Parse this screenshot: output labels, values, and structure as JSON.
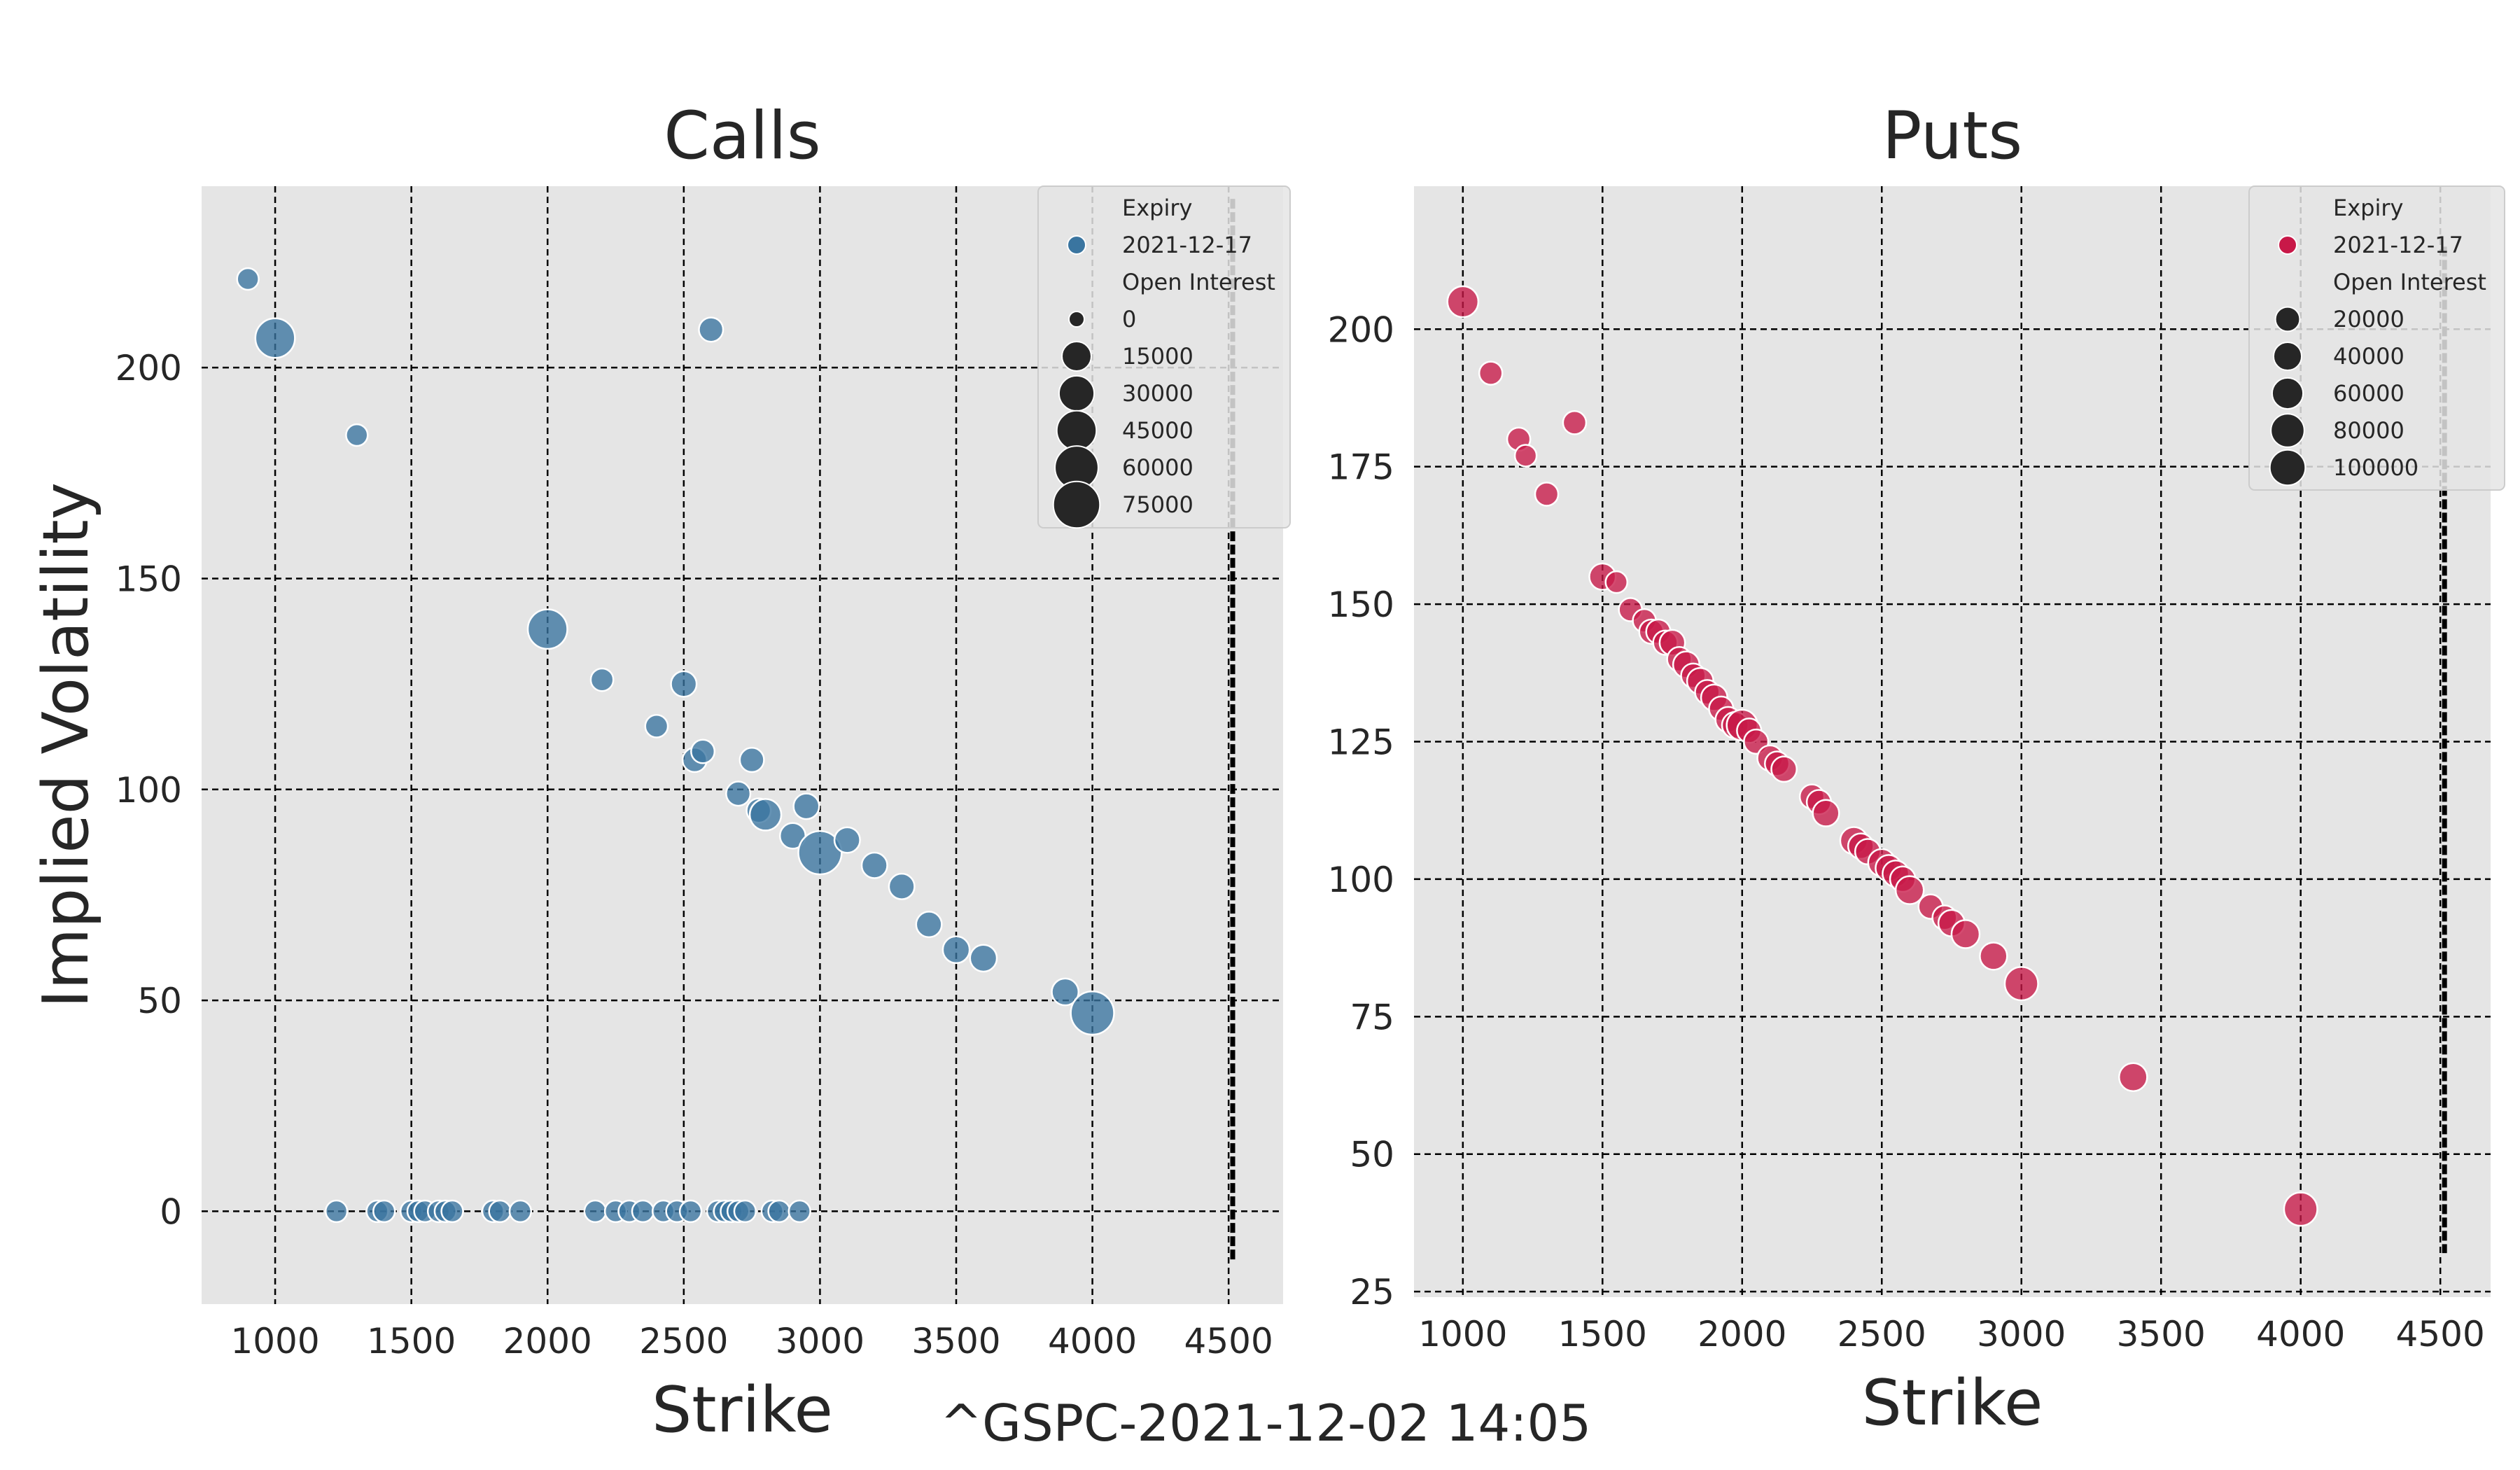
{
  "figure": {
    "suptitle": "^GSPC-2021-12-02 14:05"
  },
  "colors": {
    "calls": "#3a75a0",
    "puts": "#c81848",
    "panel_bg": "#e5e5e5"
  },
  "chart_data": [
    {
      "type": "scatter",
      "title": "Calls",
      "xlabel": "Strike",
      "ylabel": "Implied Volatility",
      "xlim": [
        730,
        4700
      ],
      "ylim": [
        -22,
        243
      ],
      "xticks": [
        1000,
        1500,
        2000,
        2500,
        3000,
        3500,
        4000,
        4500
      ],
      "yticks": [
        0,
        50,
        100,
        150,
        200
      ],
      "grid": true,
      "vline_x": 4515,
      "vline_range": [
        -12,
        240
      ],
      "legend": {
        "placement": "top-right",
        "hue_title": "Expiry",
        "hue_entries": [
          "2021-12-17"
        ],
        "size_title": "Open Interest",
        "size_entries": [
          "0",
          "15000",
          "30000",
          "45000",
          "60000",
          "75000"
        ],
        "size_values": [
          0,
          15000,
          30000,
          45000,
          60000,
          75000
        ]
      },
      "size_range": [
        0,
        80000
      ],
      "series": [
        {
          "name": "2021-12-17",
          "points": [
            {
              "x": 900,
              "y": 221,
              "oi": 3000
            },
            {
              "x": 1000,
              "y": 207,
              "oi": 45000
            },
            {
              "x": 1300,
              "y": 184,
              "oi": 3000
            },
            {
              "x": 2000,
              "y": 138,
              "oi": 45000
            },
            {
              "x": 2200,
              "y": 126,
              "oi": 4000
            },
            {
              "x": 2400,
              "y": 115,
              "oi": 4000
            },
            {
              "x": 2500,
              "y": 125,
              "oi": 8000
            },
            {
              "x": 2540,
              "y": 107,
              "oi": 6000
            },
            {
              "x": 2570,
              "y": 109,
              "oi": 5000
            },
            {
              "x": 2600,
              "y": 209,
              "oi": 6000
            },
            {
              "x": 2700,
              "y": 99,
              "oi": 6000
            },
            {
              "x": 2750,
              "y": 107,
              "oi": 6000
            },
            {
              "x": 2775,
              "y": 95,
              "oi": 6000
            },
            {
              "x": 2800,
              "y": 94,
              "oi": 20000
            },
            {
              "x": 2900,
              "y": 89,
              "oi": 8000
            },
            {
              "x": 2950,
              "y": 96,
              "oi": 8000
            },
            {
              "x": 3000,
              "y": 85,
              "oi": 60000
            },
            {
              "x": 3100,
              "y": 88,
              "oi": 8000
            },
            {
              "x": 3200,
              "y": 82,
              "oi": 8000
            },
            {
              "x": 3300,
              "y": 77,
              "oi": 8000
            },
            {
              "x": 3400,
              "y": 68,
              "oi": 8000
            },
            {
              "x": 3500,
              "y": 62,
              "oi": 10000
            },
            {
              "x": 3600,
              "y": 60,
              "oi": 10000
            },
            {
              "x": 3900,
              "y": 52,
              "oi": 10000
            },
            {
              "x": 4000,
              "y": 47,
              "oi": 60000
            },
            {
              "x": 1225,
              "y": 0,
              "oi": 3000
            },
            {
              "x": 1375,
              "y": 0,
              "oi": 3000
            },
            {
              "x": 1400,
              "y": 0,
              "oi": 3000
            },
            {
              "x": 1500,
              "y": 0,
              "oi": 3000
            },
            {
              "x": 1525,
              "y": 0,
              "oi": 3000
            },
            {
              "x": 1550,
              "y": 0,
              "oi": 3000
            },
            {
              "x": 1600,
              "y": 0,
              "oi": 3000
            },
            {
              "x": 1625,
              "y": 0,
              "oi": 3000
            },
            {
              "x": 1650,
              "y": 0,
              "oi": 3000
            },
            {
              "x": 1800,
              "y": 0,
              "oi": 3000
            },
            {
              "x": 1825,
              "y": 0,
              "oi": 3000
            },
            {
              "x": 1900,
              "y": 0,
              "oi": 3000
            },
            {
              "x": 2175,
              "y": 0,
              "oi": 3000
            },
            {
              "x": 2250,
              "y": 0,
              "oi": 3000
            },
            {
              "x": 2300,
              "y": 0,
              "oi": 3000
            },
            {
              "x": 2350,
              "y": 0,
              "oi": 3000
            },
            {
              "x": 2425,
              "y": 0,
              "oi": 3000
            },
            {
              "x": 2475,
              "y": 0,
              "oi": 3000
            },
            {
              "x": 2525,
              "y": 0,
              "oi": 3000
            },
            {
              "x": 2625,
              "y": 0,
              "oi": 3000
            },
            {
              "x": 2650,
              "y": 0,
              "oi": 3000
            },
            {
              "x": 2675,
              "y": 0,
              "oi": 3000
            },
            {
              "x": 2700,
              "y": 0,
              "oi": 3000
            },
            {
              "x": 2725,
              "y": 0,
              "oi": 3000
            },
            {
              "x": 2825,
              "y": 0,
              "oi": 3000
            },
            {
              "x": 2850,
              "y": 0,
              "oi": 3000
            },
            {
              "x": 2925,
              "y": 0,
              "oi": 3000
            }
          ]
        }
      ]
    },
    {
      "type": "scatter",
      "title": "Puts",
      "xlabel": "Strike",
      "ylabel": "",
      "xlim": [
        825,
        4680
      ],
      "ylim": [
        24,
        226
      ],
      "xticks": [
        1000,
        1500,
        2000,
        2500,
        3000,
        3500,
        4000,
        4500
      ],
      "yticks": [
        25,
        50,
        75,
        100,
        125,
        150,
        175,
        200
      ],
      "grid": true,
      "vline_x": 4515,
      "vline_range": [
        32,
        215
      ],
      "legend": {
        "placement": "top-right",
        "hue_title": "Expiry",
        "hue_entries": [
          "2021-12-17"
        ],
        "size_title": "Open Interest",
        "size_entries": [
          "20000",
          "40000",
          "60000",
          "80000",
          "100000"
        ],
        "size_values": [
          20000,
          40000,
          60000,
          80000,
          100000
        ]
      },
      "size_range": [
        0,
        110000
      ],
      "series": [
        {
          "name": "2021-12-17",
          "points": [
            {
              "x": 1000,
              "y": 205,
              "oi": 60000
            },
            {
              "x": 1100,
              "y": 192,
              "oi": 15000
            },
            {
              "x": 1200,
              "y": 180,
              "oi": 15000
            },
            {
              "x": 1225,
              "y": 177,
              "oi": 10000
            },
            {
              "x": 1300,
              "y": 170,
              "oi": 15000
            },
            {
              "x": 1400,
              "y": 183,
              "oi": 15000
            },
            {
              "x": 1500,
              "y": 155,
              "oi": 30000
            },
            {
              "x": 1550,
              "y": 154,
              "oi": 10000
            },
            {
              "x": 1600,
              "y": 149,
              "oi": 15000
            },
            {
              "x": 1650,
              "y": 147,
              "oi": 15000
            },
            {
              "x": 1675,
              "y": 145,
              "oi": 20000
            },
            {
              "x": 1700,
              "y": 145,
              "oi": 20000
            },
            {
              "x": 1725,
              "y": 143,
              "oi": 20000
            },
            {
              "x": 1750,
              "y": 143,
              "oi": 25000
            },
            {
              "x": 1775,
              "y": 140,
              "oi": 20000
            },
            {
              "x": 1800,
              "y": 139,
              "oi": 30000
            },
            {
              "x": 1825,
              "y": 137,
              "oi": 20000
            },
            {
              "x": 1850,
              "y": 136,
              "oi": 30000
            },
            {
              "x": 1875,
              "y": 134,
              "oi": 20000
            },
            {
              "x": 1900,
              "y": 133,
              "oi": 30000
            },
            {
              "x": 1925,
              "y": 131,
              "oi": 20000
            },
            {
              "x": 1950,
              "y": 129,
              "oi": 25000
            },
            {
              "x": 1975,
              "y": 128,
              "oi": 30000
            },
            {
              "x": 2000,
              "y": 128,
              "oi": 60000
            },
            {
              "x": 2025,
              "y": 127,
              "oi": 20000
            },
            {
              "x": 2050,
              "y": 125,
              "oi": 20000
            },
            {
              "x": 2100,
              "y": 122,
              "oi": 25000
            },
            {
              "x": 2125,
              "y": 121,
              "oi": 20000
            },
            {
              "x": 2150,
              "y": 120,
              "oi": 25000
            },
            {
              "x": 2250,
              "y": 115,
              "oi": 20000
            },
            {
              "x": 2275,
              "y": 114,
              "oi": 20000
            },
            {
              "x": 2300,
              "y": 112,
              "oi": 30000
            },
            {
              "x": 2400,
              "y": 107,
              "oi": 35000
            },
            {
              "x": 2425,
              "y": 106,
              "oi": 25000
            },
            {
              "x": 2450,
              "y": 105,
              "oi": 25000
            },
            {
              "x": 2500,
              "y": 103,
              "oi": 35000
            },
            {
              "x": 2525,
              "y": 102,
              "oi": 30000
            },
            {
              "x": 2550,
              "y": 101,
              "oi": 30000
            },
            {
              "x": 2575,
              "y": 100,
              "oi": 25000
            },
            {
              "x": 2600,
              "y": 98,
              "oi": 40000
            },
            {
              "x": 2675,
              "y": 95,
              "oi": 20000
            },
            {
              "x": 2725,
              "y": 93,
              "oi": 20000
            },
            {
              "x": 2750,
              "y": 92,
              "oi": 30000
            },
            {
              "x": 2800,
              "y": 90,
              "oi": 40000
            },
            {
              "x": 2900,
              "y": 86,
              "oi": 35000
            },
            {
              "x": 3000,
              "y": 81,
              "oi": 80000
            },
            {
              "x": 3400,
              "y": 64,
              "oi": 40000
            },
            {
              "x": 4000,
              "y": 40,
              "oi": 80000
            }
          ]
        }
      ]
    }
  ]
}
